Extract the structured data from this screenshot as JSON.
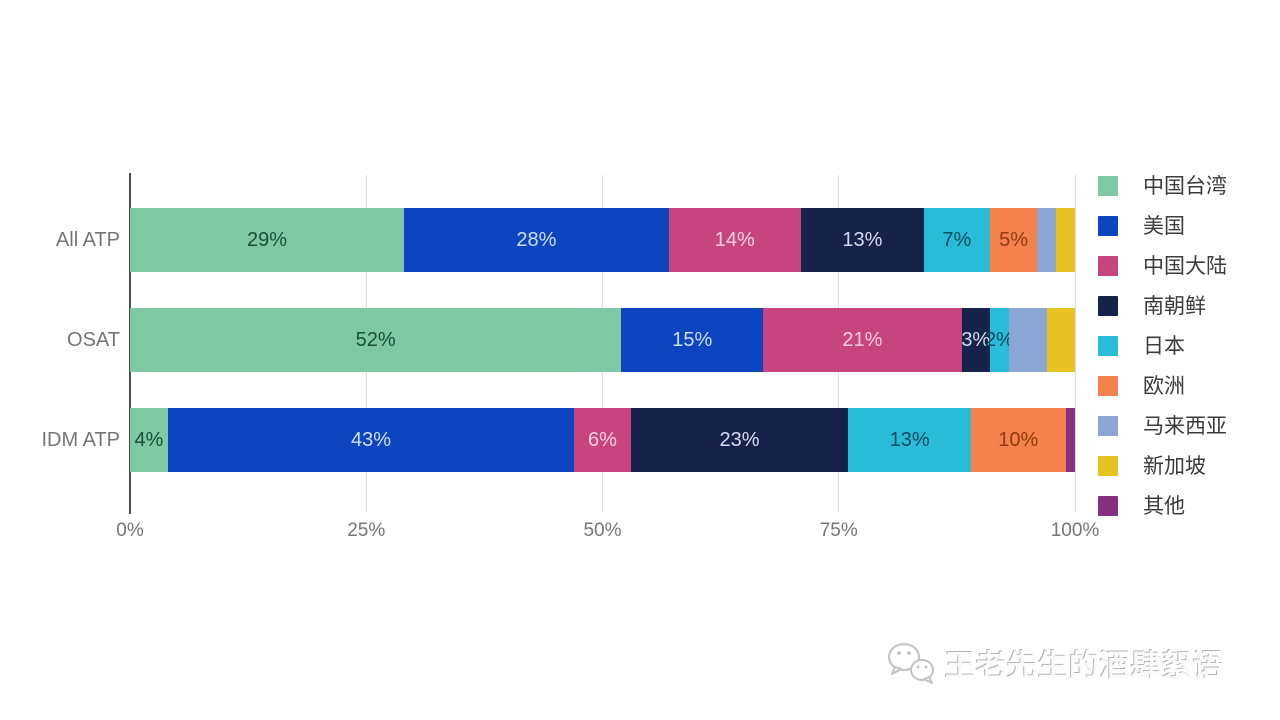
{
  "chart_data": {
    "type": "bar",
    "orientation": "horizontal-stacked",
    "title": "",
    "xlabel": "",
    "ylabel": "",
    "xlim": [
      0,
      100
    ],
    "grid": true,
    "legend_position": "right",
    "categories": [
      "All ATP",
      "OSAT",
      "IDM ATP"
    ],
    "x_ticks": [
      "0%",
      "25%",
      "50%",
      "75%",
      "100%"
    ],
    "x_tick_values": [
      0,
      25,
      50,
      75,
      100
    ],
    "series": [
      {
        "name": "中国台湾",
        "color": "#7ec9a3",
        "label_color": "#174f38",
        "values": [
          29,
          52,
          4
        ],
        "labels": [
          "29%",
          "52%",
          "4%"
        ]
      },
      {
        "name": "美国",
        "color": "#0d45c0",
        "label_color": "#cfdffc",
        "values": [
          28,
          15,
          43
        ],
        "labels": [
          "28%",
          "15%",
          "43%"
        ]
      },
      {
        "name": "中国大陆",
        "color": "#c8447e",
        "label_color": "#ffd0e4",
        "values": [
          14,
          21,
          6
        ],
        "labels": [
          "14%",
          "21%",
          "6%"
        ]
      },
      {
        "name": "南朝鲜",
        "color": "#16224a",
        "label_color": "#d3dcf2",
        "values": [
          13,
          3,
          23
        ],
        "labels": [
          "13%",
          "3%",
          "23%"
        ]
      },
      {
        "name": "日本",
        "color": "#29bcd8",
        "label_color": "#0c4a5e",
        "values": [
          7,
          2,
          13
        ],
        "labels": [
          "7%",
          "2%",
          "13%"
        ]
      },
      {
        "name": "欧洲",
        "color": "#f5814d",
        "label_color": "#8e3c10",
        "values": [
          5,
          0,
          10
        ],
        "labels": [
          "5%",
          "",
          "10%"
        ]
      },
      {
        "name": "马来西亚",
        "color": "#8ba6d2",
        "label_color": "#1e3a66",
        "values": [
          2,
          4,
          0
        ],
        "labels": [
          "",
          "",
          ""
        ]
      },
      {
        "name": "新加坡",
        "color": "#e6c322",
        "label_color": "#5c4d00",
        "values": [
          2,
          3,
          0
        ],
        "labels": [
          "",
          "",
          ""
        ]
      },
      {
        "name": "其他",
        "color": "#86307f",
        "label_color": "#ffffff",
        "values": [
          0,
          0,
          1
        ],
        "labels": [
          "",
          "",
          ""
        ]
      }
    ]
  },
  "watermark": {
    "text": "王老先生的酒肆絮语",
    "logo": "wechat-icon"
  }
}
